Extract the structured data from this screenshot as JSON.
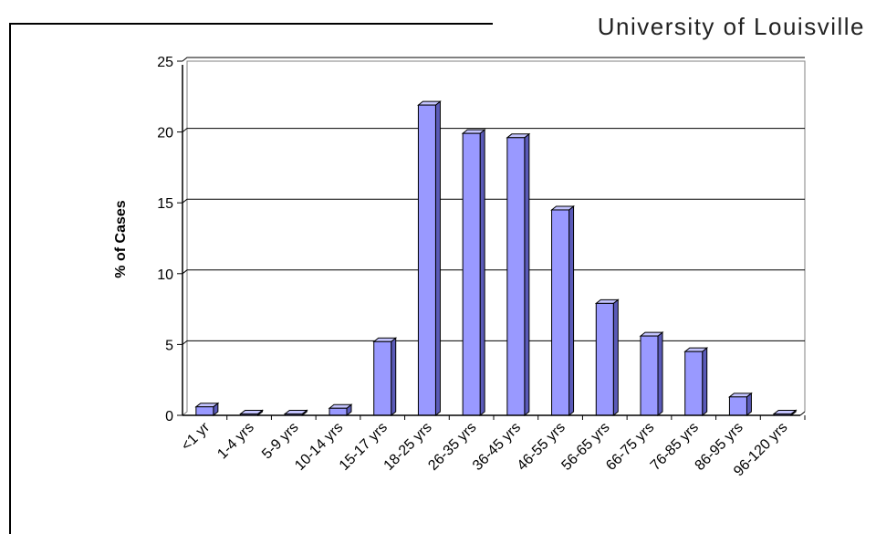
{
  "header": {
    "title": "University of Louisville"
  },
  "chart_data": {
    "type": "bar",
    "categories": [
      "<1 yr",
      "1-4 yrs",
      "5-9 yrs",
      "10-14 yrs",
      "15-17 yrs",
      "18-25 yrs",
      "26-35 yrs",
      "36-45 yrs",
      "46-55 yrs",
      "56-65 yrs",
      "66-75 yrs",
      "76-85 yrs",
      "86-95 yrs",
      "96-120 yrs"
    ],
    "values": [
      0.6,
      0.1,
      0.1,
      0.5,
      5.2,
      21.9,
      19.9,
      19.6,
      14.5,
      7.9,
      5.6,
      4.5,
      1.3,
      0.1
    ],
    "xlabel": "",
    "ylabel": "% of Cases",
    "ylim": [
      0,
      25
    ],
    "yticks": [
      0,
      5,
      10,
      15,
      20,
      25
    ],
    "grid": true,
    "legend": "none",
    "colors": {
      "bar_front": "#9999ff",
      "bar_side": "#5a5ab8",
      "bar_top": "#c4c4ff",
      "grid": "#000000",
      "plot_border": "#808080"
    }
  }
}
